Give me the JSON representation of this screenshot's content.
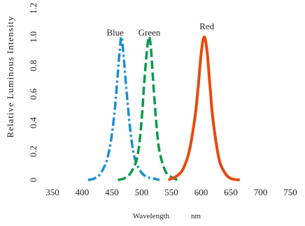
{
  "chart_data": {
    "type": "line",
    "xlabel": "Wavelength",
    "xunit": "nm",
    "ylabel": "Relative Luminous Intensity",
    "xlim": [
      350,
      750
    ],
    "ylim": [
      0,
      1.2
    ],
    "xticks": [
      "350",
      "400",
      "450",
      "500",
      "550",
      "600",
      "650",
      "700",
      "750"
    ],
    "yticks": [
      "0",
      "0.2",
      "0.4",
      "0.6",
      "0.8",
      "1.0",
      "1.2"
    ],
    "grid": false,
    "series": [
      {
        "name": "Blue",
        "color": "#1a8fd6",
        "style": "dash-dot",
        "x": [
          410,
          420,
          430,
          440,
          445,
          450,
          455,
          460,
          463,
          466,
          470,
          475,
          480,
          485,
          490,
          500,
          510,
          520,
          530
        ],
        "y": [
          0.0,
          0.01,
          0.04,
          0.12,
          0.2,
          0.32,
          0.5,
          0.75,
          0.9,
          1.0,
          0.85,
          0.6,
          0.38,
          0.22,
          0.13,
          0.05,
          0.02,
          0.01,
          0.0
        ]
      },
      {
        "name": "Green",
        "color": "#0a9a4a",
        "style": "dashed",
        "x": [
          460,
          470,
          480,
          490,
          495,
          500,
          505,
          510,
          513,
          516,
          520,
          525,
          530,
          540,
          550,
          560
        ],
        "y": [
          0.0,
          0.01,
          0.04,
          0.12,
          0.22,
          0.42,
          0.72,
          0.95,
          1.0,
          0.9,
          0.65,
          0.38,
          0.2,
          0.06,
          0.02,
          0.0
        ]
      },
      {
        "name": "Red",
        "color": "#e8490f",
        "style": "solid",
        "x": [
          545,
          560,
          570,
          580,
          590,
          595,
          600,
          605,
          610,
          615,
          620,
          630,
          640,
          650,
          665
        ],
        "y": [
          0.0,
          0.03,
          0.08,
          0.2,
          0.45,
          0.65,
          0.88,
          1.0,
          0.9,
          0.65,
          0.42,
          0.15,
          0.05,
          0.01,
          0.0
        ]
      }
    ],
    "legend": "inline labels above peaks"
  }
}
